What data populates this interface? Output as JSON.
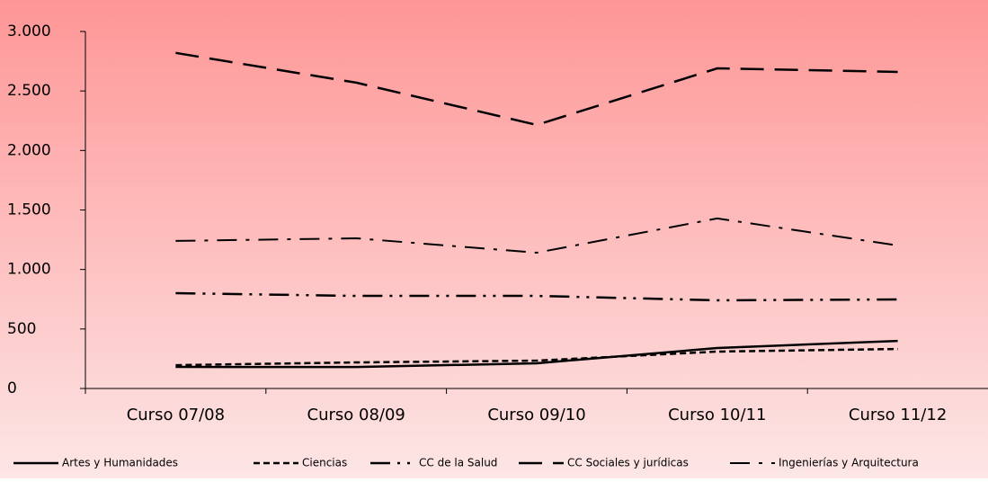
{
  "chart_data": {
    "type": "line",
    "categories": [
      "Curso 07/08",
      "Curso 08/09",
      "Curso 09/10",
      "Curso 10/11",
      "Curso 11/12"
    ],
    "series": [
      {
        "name": "Artes y Humanidades",
        "color": "#000000",
        "values": [
          181,
          180,
          212,
          340,
          400
        ]
      },
      {
        "name": "Ciencias",
        "color": "#000000",
        "values": [
          196,
          219,
          234,
          310,
          332
        ]
      },
      {
        "name": "CC de la Salud",
        "color": "#000000",
        "values": [
          801,
          778,
          778,
          741,
          748
        ]
      },
      {
        "name": "CC Sociales y jurídicas",
        "color": "#000000",
        "values": [
          2820,
          2570,
          2215,
          2690,
          2660
        ]
      },
      {
        "name": "Ingenierías y Arquitectura",
        "color": "#000000",
        "values": [
          1240,
          1262,
          1141,
          1429,
          1202
        ]
      }
    ],
    "ylim": [
      0,
      3000
    ],
    "yticks": [
      0,
      500,
      {
        "value": 1000,
        "label": "1.000"
      },
      {
        "value": 1500,
        "label": "1.500"
      },
      {
        "value": 2000,
        "label": "2.000"
      },
      {
        "value": 2500,
        "label": "2.500"
      },
      {
        "value": 3000,
        "label": "3.000"
      }
    ],
    "legend": "bottom"
  }
}
